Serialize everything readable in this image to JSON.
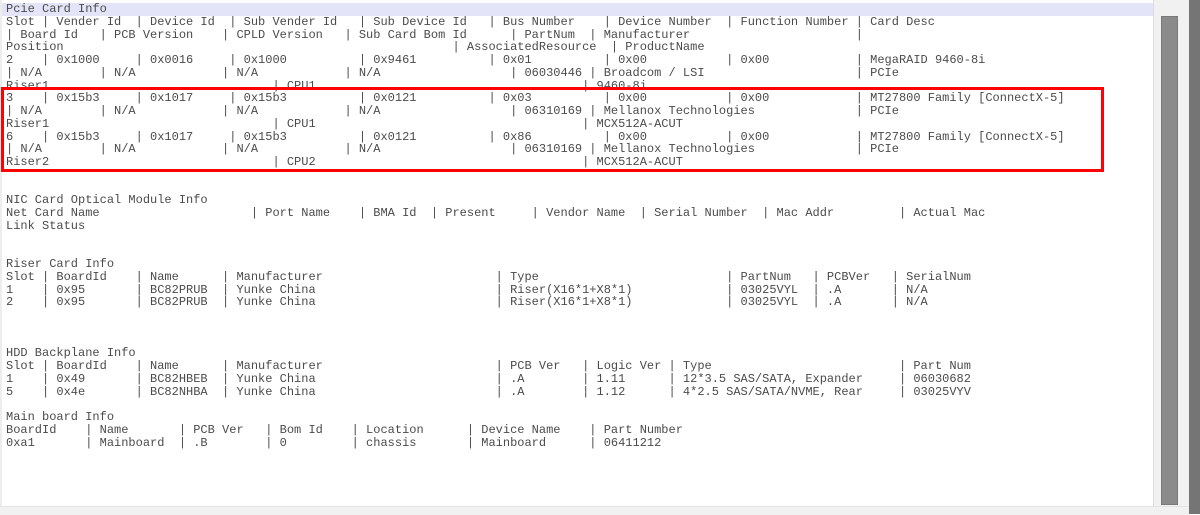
{
  "colors": {
    "background": "#ffffff",
    "text": "#4b4b4b",
    "highlight_line": "#e4e4f8",
    "annotation_red": "#fc0204",
    "scrollbar_track": "#f1f1f1",
    "scrollbar_thumb": "#8b8b8b",
    "screen_edge": "#757575",
    "divider": "#dcdcdc"
  },
  "console": {
    "highlighted_line_index": 0,
    "annotation": {
      "type": "red-box",
      "color": "#fc0204",
      "first_line_index": 7,
      "last_line_index": 12,
      "highlights": "PCIe slot 3 and slot 6 rows - MT27800 Family [ConnectX-5] Mellanox Technologies MCX512A-ACUT"
    },
    "lines": [
      "Pcie Card Info",
      "Slot | Vender Id  | Device Id  | Sub Vender Id   | Sub Device Id   | Bus Number    | Device Number  | Function Number | Card Desc",
      "| Board Id   | PCB Version    | CPLD Version   | Sub Card Bom Id      | PartNum  | Manufacturer                       |",
      "Position                                                      | AssociatedResource  | ProductName",
      "2    | 0x1000     | 0x0016     | 0x1000          | 0x9461          | 0x01          | 0x00           | 0x00            | MegaRAID 9460-8i",
      "| N/A        | N/A            | N/A            | N/A                  | 06030446 | Broadcom / LSI                     | PCIe",
      "Riser1                               | CPU1                                     | 9460-8i",
      "3    | 0x15b3     | 0x1017     | 0x15b3          | 0x0121          | 0x03          | 0x00           | 0x00            | MT27800 Family [ConnectX-5]",
      "| N/A        | N/A            | N/A            | N/A                  | 06310169 | Mellanox Technologies              | PCIe",
      "Riser1                               | CPU1                                     | MCX512A-ACUT",
      "6    | 0x15b3     | 0x1017     | 0x15b3          | 0x0121          | 0x86          | 0x00           | 0x00            | MT27800 Family [ConnectX-5]",
      "| N/A        | N/A            | N/A            | N/A                  | 06310169 | Mellanox Technologies              | PCIe",
      "Riser2                               | CPU2                                     | MCX512A-ACUT",
      "",
      "",
      "NIC Card Optical Module Info",
      "Net Card Name                     | Port Name    | BMA Id  | Present     | Vendor Name  | Serial Number  | Mac Addr         | Actual Mac                           |",
      "Link Status",
      "",
      "",
      "Riser Card Info",
      "Slot | BoardId    | Name      | Manufacturer                        | Type                          | PartNum   | PCBVer   | SerialNum",
      "1    | 0x95       | BC82PRUB  | Yunke China                         | Riser(X16*1+X8*1)             | 03025VYL  | .A       | N/A",
      "2    | 0x95       | BC82PRUB  | Yunke China                         | Riser(X16*1+X8*1)             | 03025VYL  | .A       | N/A",
      "",
      "",
      "",
      "HDD Backplane Info",
      "Slot | BoardId    | Name      | Manufacturer                        | PCB Ver   | Logic Ver | Type                          | Part Num",
      "1    | 0x49       | BC82HBEB  | Yunke China                         | .A        | 1.11      | 12*3.5 SAS/SATA, Expander     | 06030682",
      "5    | 0x4e       | BC82NHBA  | Yunke China                         | .A        | 1.12      | 4*2.5 SAS/SATA/NVME, Rear     | 03025VYV",
      "",
      "Main board Info",
      "BoardId    | Name       | PCB Ver   | Bom Id    | Location      | Device Name    | Part Number",
      "0xa1       | Mainboard  | .B        | 0         | chassis       | Mainboard      | 06411212"
    ]
  }
}
